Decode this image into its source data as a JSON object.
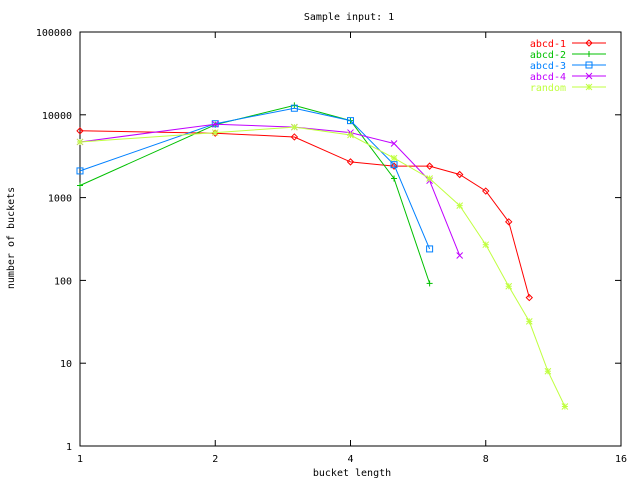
{
  "chart_data": {
    "type": "line",
    "title": "Sample input: 1",
    "xlabel": "bucket length",
    "ylabel": "number of buckets",
    "xscale": "log2",
    "yscale": "log10",
    "xlim": [
      1,
      16
    ],
    "ylim": [
      1,
      100000
    ],
    "x_ticks": [
      {
        "v": 1,
        "label": "1"
      },
      {
        "v": 2,
        "label": "2"
      },
      {
        "v": 4,
        "label": "4"
      },
      {
        "v": 8,
        "label": "8"
      },
      {
        "v": 16,
        "label": "16"
      }
    ],
    "y_ticks": [
      {
        "v": 1,
        "label": "1"
      },
      {
        "v": 10,
        "label": "10"
      },
      {
        "v": 100,
        "label": "100"
      },
      {
        "v": 1000,
        "label": "1000"
      },
      {
        "v": 10000,
        "label": "10000"
      },
      {
        "v": 100000,
        "label": "100000"
      }
    ],
    "legend_position": "top-right",
    "grid": false,
    "series": [
      {
        "name": "abcd-1",
        "color": "#ff0000",
        "marker": "diamond",
        "points": [
          [
            1,
            6400
          ],
          [
            2,
            6000
          ],
          [
            3,
            5400
          ],
          [
            4,
            2700
          ],
          [
            5,
            2400
          ],
          [
            6,
            2400
          ],
          [
            7,
            1900
          ],
          [
            8,
            1200
          ],
          [
            9,
            510
          ],
          [
            10,
            62
          ]
        ]
      },
      {
        "name": "abcd-2",
        "color": "#00c000",
        "marker": "plus",
        "points": [
          [
            1,
            1400
          ],
          [
            2,
            7600
          ],
          [
            3,
            13000
          ],
          [
            4,
            8500
          ],
          [
            5,
            1700
          ],
          [
            6,
            92
          ]
        ]
      },
      {
        "name": "abcd-3",
        "color": "#0080ff",
        "marker": "square",
        "points": [
          [
            1,
            2100
          ],
          [
            2,
            7800
          ],
          [
            3,
            12000
          ],
          [
            4,
            8500
          ],
          [
            5,
            2500
          ],
          [
            6,
            240
          ]
        ]
      },
      {
        "name": "abcd-4",
        "color": "#c000ff",
        "marker": "x",
        "points": [
          [
            1,
            4700
          ],
          [
            2,
            7700
          ],
          [
            3,
            7100
          ],
          [
            4,
            6100
          ],
          [
            5,
            4500
          ],
          [
            6,
            1600
          ],
          [
            7,
            200
          ]
        ]
      },
      {
        "name": "random",
        "color": "#c0ff40",
        "marker": "asterisk",
        "points": [
          [
            1,
            4700
          ],
          [
            2,
            6100
          ],
          [
            3,
            7100
          ],
          [
            4,
            5700
          ],
          [
            5,
            3000
          ],
          [
            6,
            1700
          ],
          [
            7,
            800
          ],
          [
            8,
            270
          ],
          [
            9,
            85
          ],
          [
            10,
            32
          ],
          [
            11,
            8
          ],
          [
            12,
            3
          ]
        ]
      }
    ]
  }
}
